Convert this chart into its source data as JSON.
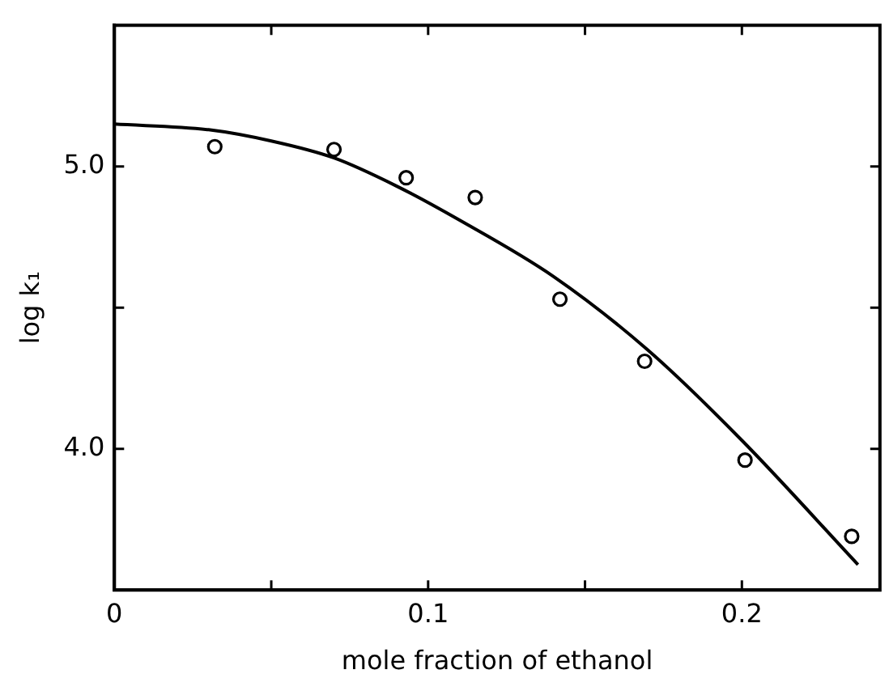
{
  "chart_data": {
    "type": "scatter",
    "xlabel": "mole fraction of ethanol",
    "ylabel": "log k₁",
    "xlim": [
      0,
      0.244
    ],
    "ylim": [
      3.5,
      5.5
    ],
    "xticks": [
      0,
      {
        "value": 0.05,
        "label": null
      },
      0.1,
      {
        "value": 0.15,
        "label": null
      },
      0.2
    ],
    "yticks": [
      {
        "value": 4,
        "label": "4.0"
      },
      {
        "value": 4.5,
        "label": null
      },
      {
        "value": 5,
        "label": "5.0"
      }
    ],
    "grid": false,
    "legend": false,
    "series": [
      {
        "marker": "circle",
        "color": "#000000",
        "x": [
          0.032,
          0.07,
          0.093,
          0.115,
          0.142,
          0.169,
          0.201,
          0.235
        ],
        "values": [
          5.07,
          5.06,
          4.96,
          4.89,
          4.53,
          4.31,
          3.96,
          3.69
        ]
      },
      {
        "type": "line",
        "marker": "none",
        "line_style": "solid",
        "color": "#000000",
        "x": [
          0,
          0.03,
          0.05,
          0.07,
          0.09,
          0.11,
          0.14,
          0.17,
          0.2,
          0.237
        ],
        "values": [
          5.15,
          5.13,
          5.09,
          5.03,
          4.93,
          4.81,
          4.61,
          4.35,
          4.03,
          3.59
        ]
      }
    ]
  }
}
